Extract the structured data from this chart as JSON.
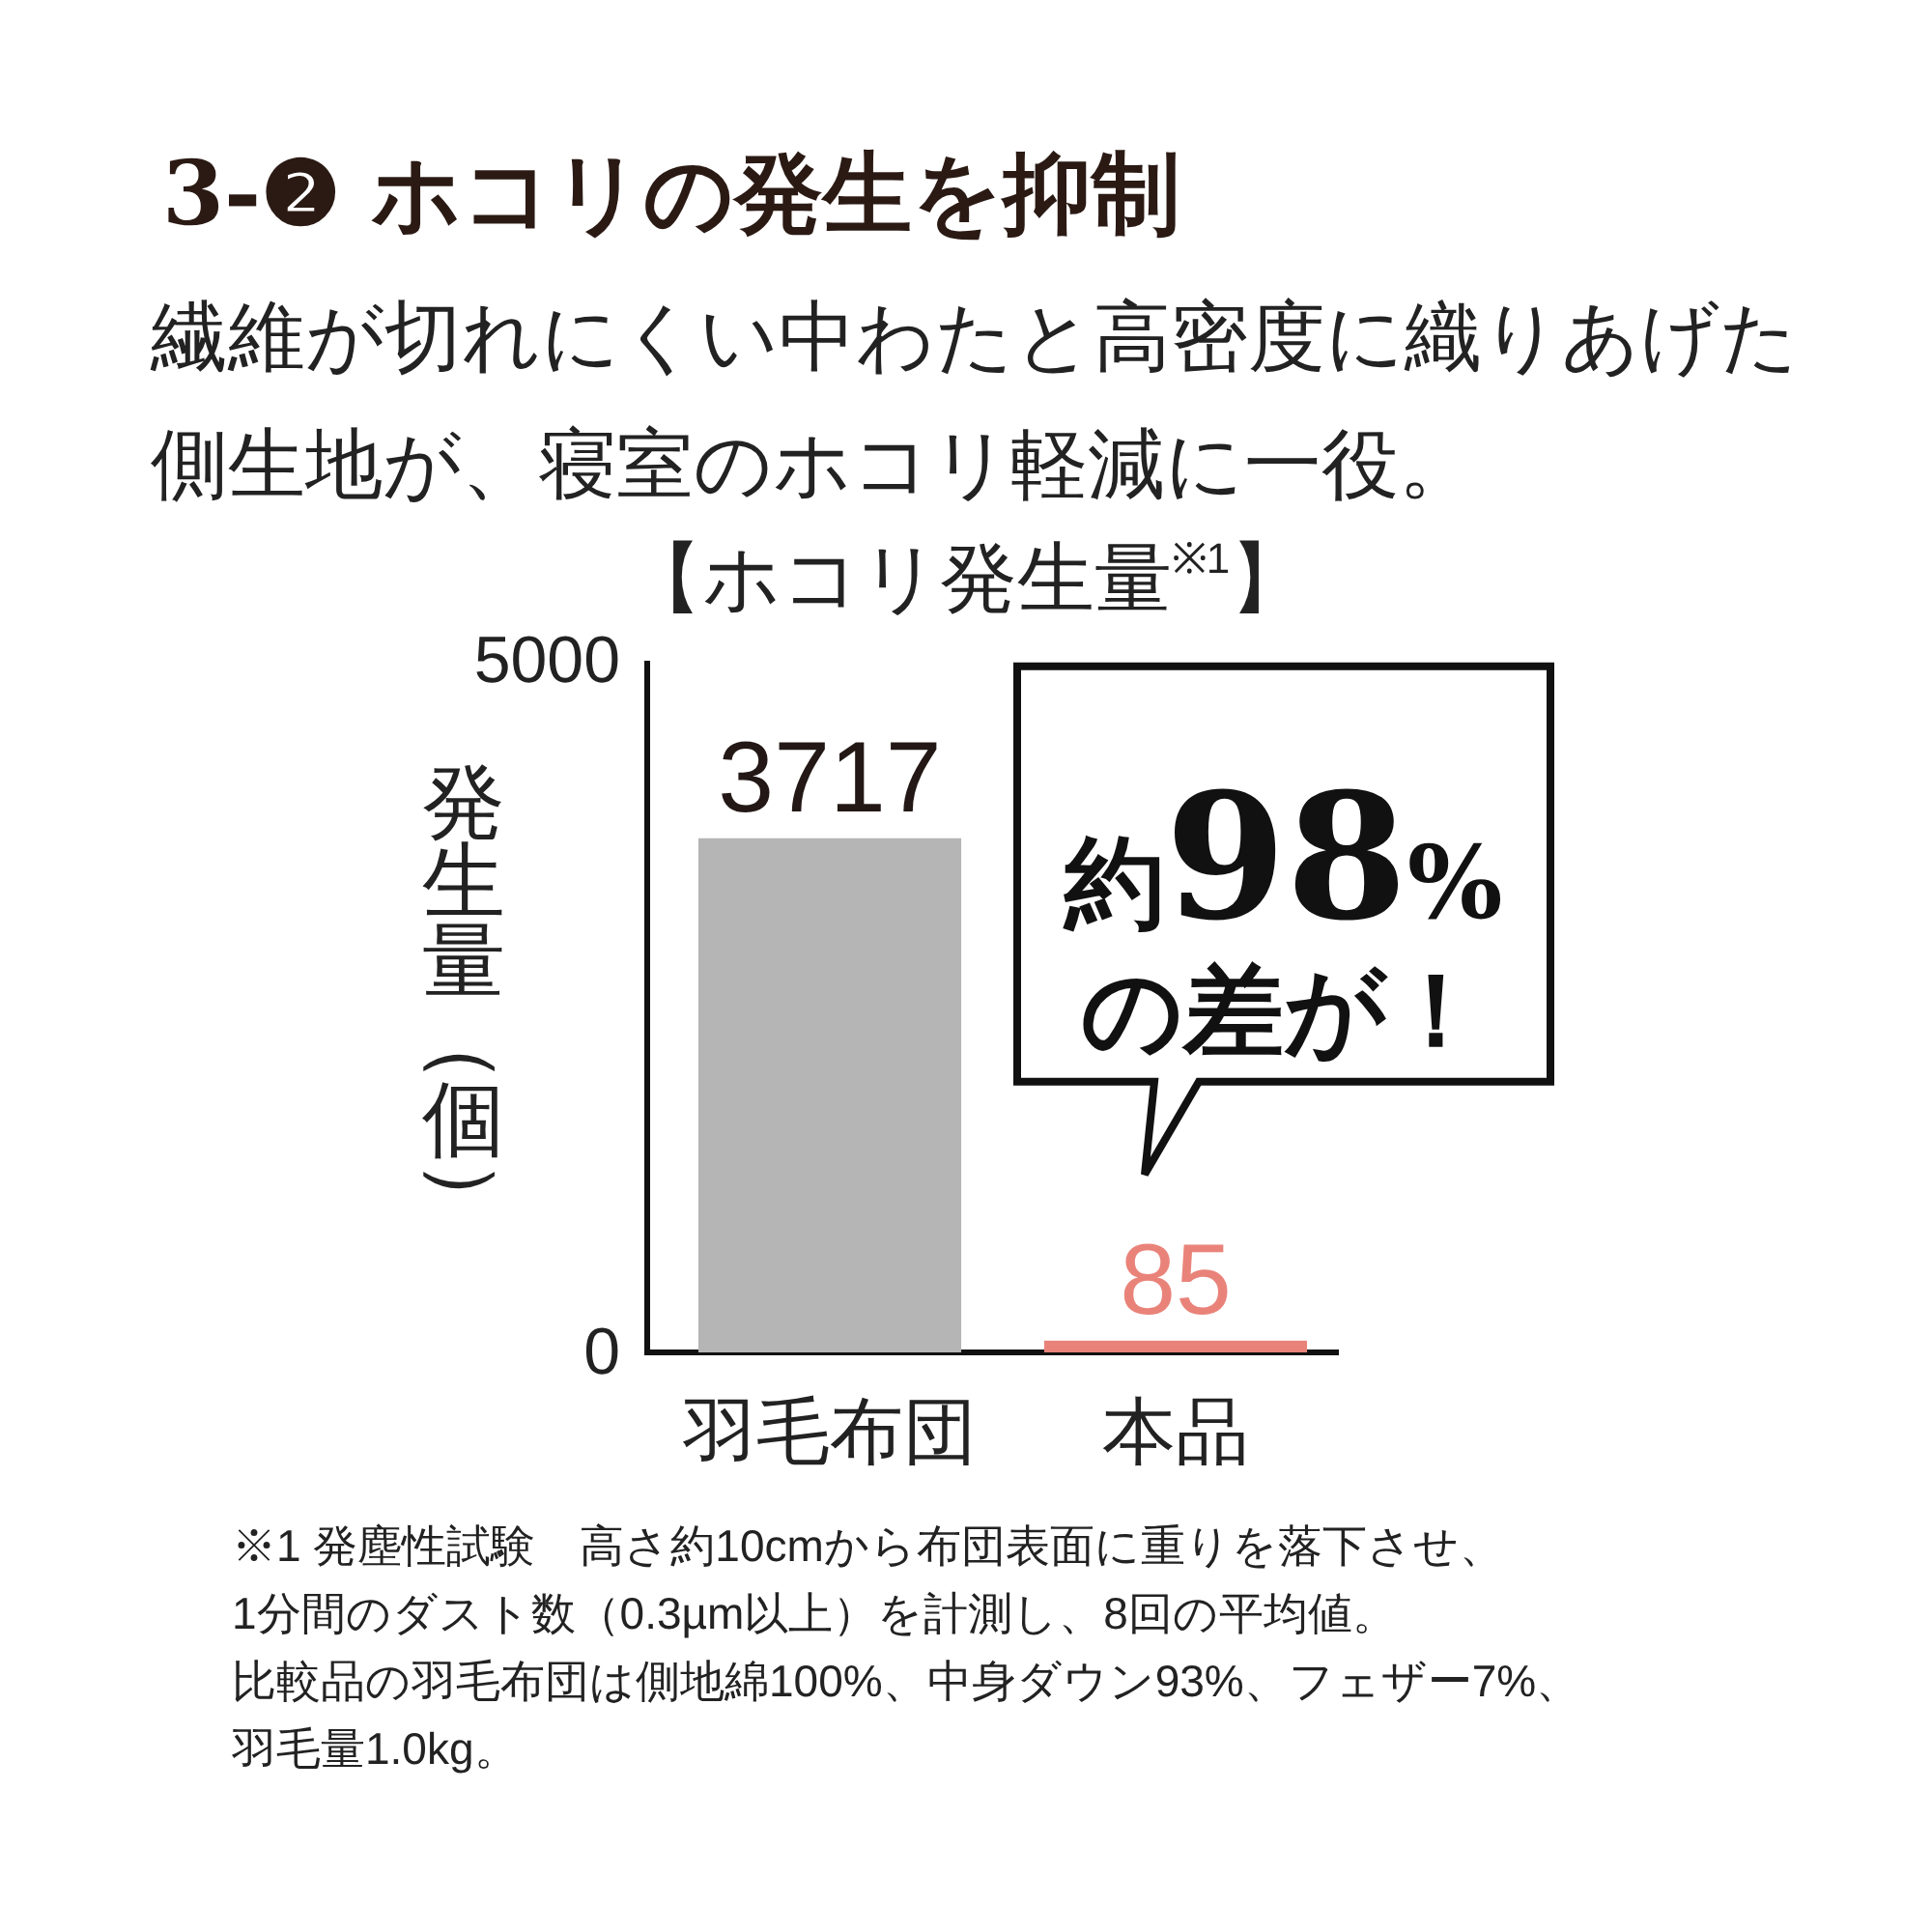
{
  "chart_data": {
    "type": "bar",
    "title": "3-❷ ホコリの発生を抑制",
    "subtitle": "繊維が切れにくい中わたと高密度に織りあげた側生地が、寝室のホコリ軽減に一役。",
    "ylabel": "発生量（個）",
    "categories": [
      "羽毛布団",
      "本品"
    ],
    "values": [
      3717,
      85
    ],
    "colors": [
      "#b5b5b6",
      "#e9837a"
    ],
    "ylim": [
      0,
      5000
    ],
    "yticks": [
      0,
      5000
    ],
    "data_labels": true,
    "annotations": [
      {
        "text": "約**98**%の差が！",
        "x": "本品",
        "y": 85
      },
      "【ホコリ発生量$^{※1}$】",
      "※1 発塵性試験　高さ約10cmから布団表面に重りを落下させ、",
      "1分間のダスト数（0.3µm以上）を計測し、8回の平均値。",
      "比較品の羽毛布団は側地綿100%、中身ダウン93%、フェザー7%、",
      "羽毛量1.0kg。"
    ]
  }
}
